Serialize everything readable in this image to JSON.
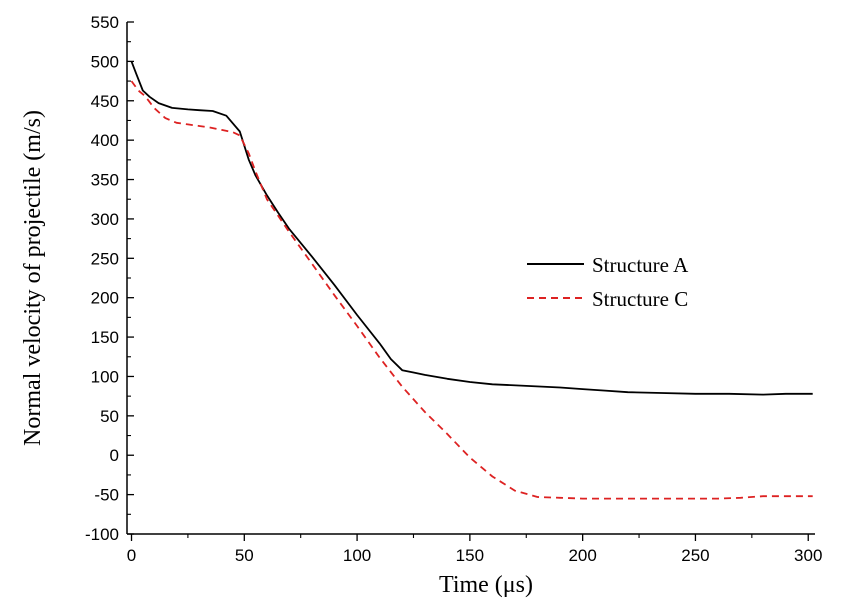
{
  "chart_data": {
    "type": "line",
    "title": "",
    "xlabel": "Time (μs)",
    "ylabel": "Normal velocity of projectile (m/s)",
    "xlim": [
      -2,
      303
    ],
    "ylim": [
      -100,
      550
    ],
    "xticks": [
      0,
      50,
      100,
      150,
      200,
      250,
      300
    ],
    "yticks": [
      -100,
      -50,
      0,
      50,
      100,
      150,
      200,
      250,
      300,
      350,
      400,
      450,
      500,
      550
    ],
    "grid": false,
    "legend_position": "center-right",
    "series": [
      {
        "name": "Structure A",
        "color": "#000000",
        "style": "solid",
        "x": [
          0,
          2,
          5,
          8,
          12,
          18,
          25,
          30,
          36,
          42,
          48,
          52,
          55,
          60,
          65,
          70,
          80,
          90,
          100,
          110,
          115,
          120,
          125,
          130,
          140,
          150,
          160,
          175,
          190,
          200,
          210,
          220,
          235,
          250,
          265,
          280,
          290,
          302
        ],
        "y": [
          500,
          485,
          463,
          455,
          447,
          441,
          439,
          438,
          437,
          431,
          411,
          375,
          355,
          330,
          308,
          287,
          252,
          216,
          178,
          142,
          122,
          108,
          105,
          102,
          97,
          93,
          90,
          88,
          86,
          84,
          82,
          80,
          79,
          78,
          78,
          77,
          78,
          78
        ]
      },
      {
        "name": "Structure C",
        "color": "#dd2222",
        "style": "dashed",
        "x": [
          0,
          3,
          6,
          10,
          15,
          20,
          25,
          30,
          35,
          40,
          45,
          48,
          52,
          55,
          60,
          70,
          80,
          90,
          100,
          110,
          120,
          130,
          140,
          150,
          160,
          170,
          180,
          190,
          200,
          210,
          220,
          230,
          240,
          250,
          260,
          270,
          280,
          290,
          302
        ],
        "y": [
          475,
          463,
          456,
          441,
          428,
          422,
          420,
          418,
          416,
          413,
          410,
          406,
          383,
          360,
          325,
          283,
          243,
          203,
          164,
          124,
          87,
          55,
          27,
          -3,
          -27,
          -45,
          -53,
          -54,
          -55,
          -55,
          -55,
          -55,
          -55,
          -55,
          -55,
          -54,
          -52,
          -52,
          -52
        ]
      }
    ]
  }
}
